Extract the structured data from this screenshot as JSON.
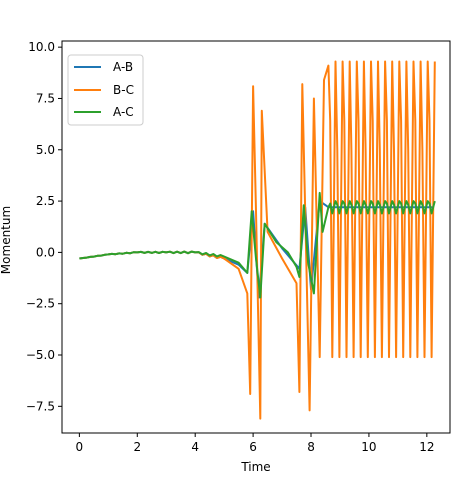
{
  "chart_data": {
    "type": "line",
    "xlabel": "Time",
    "ylabel": "Momentum",
    "xlim": [
      -0.6,
      12.8
    ],
    "ylim": [
      -8.8,
      10.3
    ],
    "xticks": [
      0,
      2,
      4,
      6,
      8,
      10,
      12
    ],
    "xtick_labels": [
      "0",
      "2",
      "4",
      "6",
      "8",
      "10",
      "12"
    ],
    "yticks": [
      -7.5,
      -5.0,
      -2.5,
      0.0,
      2.5,
      5.0,
      7.5,
      10.0
    ],
    "ytick_labels": [
      "−7.5",
      "−5.0",
      "−2.5",
      "0.0",
      "2.5",
      "5.0",
      "7.5",
      "10.0"
    ],
    "grid": false,
    "legend_position": "upper-left",
    "series": [
      {
        "name": "A-B",
        "color": "#1f77b4",
        "x": [
          0.0,
          1.0,
          2.0,
          3.0,
          4.0,
          5.0,
          5.5,
          5.8,
          6.0,
          6.2,
          6.4,
          7.0,
          7.6,
          7.8,
          8.0,
          8.3,
          8.6,
          9.0,
          10.0,
          11.0,
          12.2
        ],
        "y": [
          -0.3,
          -0.1,
          0.0,
          0.0,
          0.0,
          -0.3,
          -0.6,
          -1.0,
          2.0,
          -2.2,
          1.4,
          0.2,
          -0.8,
          2.2,
          -1.8,
          2.5,
          2.2,
          2.2,
          2.2,
          2.2,
          2.2
        ]
      },
      {
        "name": "B-C",
        "color": "#ff7f0e",
        "x": [
          0.0,
          1.0,
          2.0,
          3.0,
          4.0,
          5.0,
          5.5,
          5.8,
          5.9,
          6.0,
          6.1,
          6.25,
          6.3,
          6.5,
          7.0,
          7.5,
          7.6,
          7.7,
          7.8,
          7.95,
          8.1,
          8.3,
          8.45,
          8.6
        ],
        "y": [
          -0.3,
          -0.1,
          0.0,
          0.0,
          0.0,
          -0.3,
          -0.8,
          -2.0,
          -6.9,
          8.1,
          2.0,
          -8.1,
          6.9,
          1.0,
          -0.3,
          -1.5,
          -6.8,
          8.2,
          2.0,
          -7.7,
          7.5,
          -5.1,
          8.4,
          9.1
        ],
        "oscillation": {
          "t_start": 8.6,
          "t_end": 12.2,
          "period": 0.245,
          "max": 9.3,
          "min": -5.1
        }
      },
      {
        "name": "A-C",
        "color": "#2ca02c",
        "x": [
          0.0,
          1.0,
          2.0,
          3.0,
          4.0,
          5.0,
          5.5,
          5.8,
          5.95,
          6.1,
          6.25,
          6.4,
          6.8,
          7.2,
          7.5,
          7.6,
          7.75,
          7.9,
          8.1,
          8.3,
          8.4,
          8.6
        ],
        "y": [
          -0.3,
          -0.1,
          0.0,
          0.0,
          0.0,
          -0.2,
          -0.5,
          -1.0,
          2.0,
          -0.3,
          -2.2,
          1.4,
          0.5,
          0.0,
          -0.7,
          -1.2,
          2.3,
          -0.5,
          -2.0,
          2.9,
          1.0,
          2.2
        ],
        "oscillation": {
          "t_start": 8.6,
          "t_end": 12.2,
          "period": 0.245,
          "max": 2.5,
          "min": 1.9
        }
      }
    ]
  }
}
